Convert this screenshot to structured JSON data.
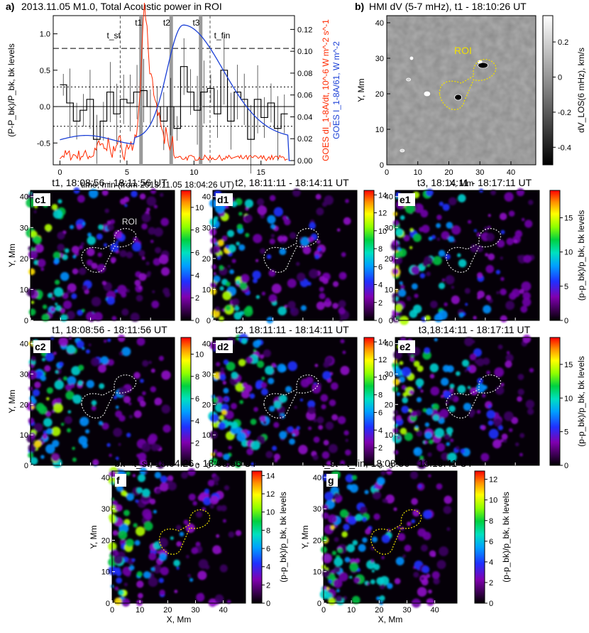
{
  "figure": {
    "panel_a": {
      "letter": "a)",
      "title": "2013.11.05 M1.0, Total Acoustic power in ROI",
      "xlabel": "time, min (from 2013.11.05 18:04:26 UT)",
      "ylabel_left": "(P-P_bk)/P_bk, bk levels",
      "ylabel_right_red": "GOES dI_1-8A/dt, 10^-6 W m^-2 s^-1",
      "ylabel_right_blue": "GOES I_1-8A/61, W m^-2",
      "markers": [
        "t_st",
        "t1",
        "t2",
        "t3",
        "t_fin"
      ],
      "xticks": [
        "0",
        "5",
        "10",
        "15"
      ],
      "yticks_left": [
        "-0.5",
        "0.0",
        "0.5",
        "1.0"
      ],
      "yticks_right": [
        "0.00",
        "0.02",
        "0.04",
        "0.06",
        "0.08",
        "0.10",
        "0.12"
      ],
      "colors": {
        "red": "#ff2a00",
        "blue": "#1a3fd6",
        "gray": "#999999"
      }
    },
    "panel_b": {
      "letter": "b)",
      "title": "HMI dV (5-7 mHz), t1 - 18:10:26 UT",
      "roi_label": "ROI",
      "xlabel": "X, Mm",
      "ylabel": "Y, Mm",
      "colorbar_label": "dV_LOS(6 mHz), km/s",
      "colorbar_ticks": [
        "0.2",
        "0",
        "-0.2",
        "-0.4"
      ],
      "xticks": [
        "0",
        "10",
        "20",
        "30",
        "40"
      ],
      "yticks": [
        "0",
        "10",
        "20",
        "30",
        "40"
      ]
    },
    "row1": [
      {
        "badge": "c1",
        "title": "t1, 18:08:56 - 18:11:56 UT",
        "cb_ticks": [
          "0",
          "2",
          "4",
          "6",
          "8",
          "10"
        ],
        "roi_label": "ROI"
      },
      {
        "badge": "d1",
        "title": "t2, 18:11:11 - 18:14:11 UT",
        "cb_ticks": [
          "0",
          "2",
          "4",
          "6",
          "8",
          "10",
          "12",
          "14"
        ]
      },
      {
        "badge": "e1",
        "title": "t3, 18:14:11 - 18:17:11 UT",
        "cb_ticks": [
          "0",
          "5",
          "10",
          "15"
        ]
      }
    ],
    "row2": [
      {
        "badge": "c2",
        "title": "t1, 18:08:56 - 18:11:56 UT",
        "cb_ticks": [
          "0",
          "2",
          "4",
          "6",
          "8",
          "10"
        ]
      },
      {
        "badge": "d2",
        "title": "t2, 18:11:11 - 18:14:11 UT",
        "cb_ticks": [
          "0",
          "2",
          "4",
          "6",
          "8",
          "10",
          "12",
          "14"
        ]
      },
      {
        "badge": "e2",
        "title": "t3,18:14:11 - 18:17:11 UT",
        "cb_ticks": [
          "0",
          "5",
          "10",
          "15"
        ]
      }
    ],
    "row3": [
      {
        "badge": "f",
        "title": "bk <t_st, 18:04:26 - 18:08:56 UT",
        "cb_ticks": [
          "0",
          "2",
          "4",
          "6",
          "8",
          "10",
          "12",
          "14"
        ]
      },
      {
        "badge": "g",
        "title": "t_st - t_fin, 18:08:56 - 18:15:41 UT",
        "cb_ticks": [
          "0",
          "2",
          "4",
          "6",
          "8",
          "10",
          "12"
        ]
      }
    ],
    "common": {
      "ylabel": "Y, Mm",
      "xlabel": "X, Mm",
      "cb_label": "(p-p_bk)/p_bk, bk levels",
      "xticks": [
        "0",
        "10",
        "20",
        "30",
        "40"
      ],
      "yticks": [
        "0",
        "10",
        "20",
        "30",
        "40"
      ]
    }
  }
}
